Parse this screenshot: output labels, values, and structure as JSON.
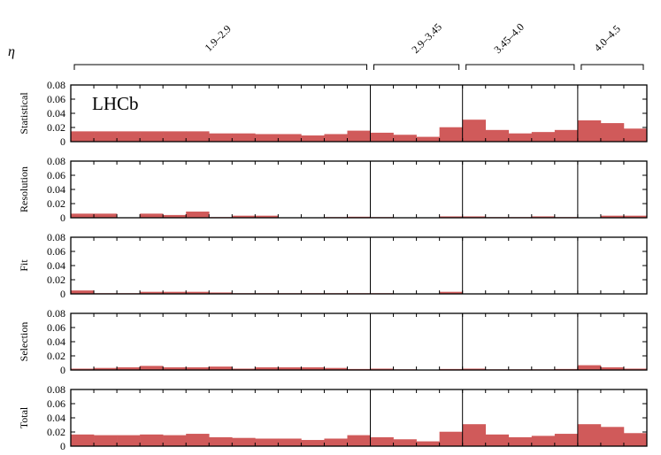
{
  "chart_data": {
    "type": "bar",
    "eta_symbol": "η",
    "eta_ranges": [
      "1.9–2.9",
      "2.9–3.45",
      "3.45–4.0",
      "4.0–4.5"
    ],
    "bins_per_range": [
      13,
      4,
      5,
      3
    ],
    "brand": "LHCb",
    "bar_color": "#d05a5a",
    "ylim": [
      0,
      0.08
    ],
    "yticks": [
      "0.08",
      "0.06",
      "0.04",
      "0.02",
      "0"
    ],
    "panels": [
      {
        "ylabel": "Statistical",
        "values": [
          0.015,
          0.015,
          0.015,
          0.015,
          0.015,
          0.015,
          0.012,
          0.012,
          0.011,
          0.011,
          0.009,
          0.011,
          0.016,
          0.013,
          0.01,
          0.007,
          0.021,
          0.032,
          0.017,
          0.012,
          0.014,
          0.017,
          0.031,
          0.027,
          0.019
        ]
      },
      {
        "ylabel": "Resolution",
        "values": [
          0.006,
          0.006,
          0.0005,
          0.006,
          0.004,
          0.009,
          0.001,
          0.003,
          0.003,
          0.0005,
          0.0005,
          0.001,
          0.0015,
          0.001,
          0.0005,
          0.0005,
          0.002,
          0.002,
          0.001,
          0.001,
          0.002,
          0.001,
          0.0005,
          0.003,
          0.003
        ]
      },
      {
        "ylabel": "Fit",
        "values": [
          0.005,
          0.001,
          0.001,
          0.003,
          0.003,
          0.003,
          0.002,
          0.001,
          0.001,
          0.001,
          0.001,
          0.001,
          0.001,
          0.001,
          0.0005,
          0.0005,
          0.003,
          0.0005,
          0.0005,
          0.0005,
          0.0005,
          0.0005,
          0.0005,
          0.0005,
          0.0005
        ]
      },
      {
        "ylabel": "Selection",
        "values": [
          0.002,
          0.003,
          0.004,
          0.006,
          0.004,
          0.004,
          0.005,
          0.002,
          0.004,
          0.004,
          0.004,
          0.003,
          0.0015,
          0.002,
          0.001,
          0.0005,
          0.0015,
          0.002,
          0.001,
          0.001,
          0.001,
          0.0015,
          0.007,
          0.004,
          0.002
        ]
      },
      {
        "ylabel": "Total",
        "values": [
          0.017,
          0.016,
          0.016,
          0.017,
          0.016,
          0.018,
          0.013,
          0.012,
          0.011,
          0.011,
          0.009,
          0.011,
          0.016,
          0.013,
          0.01,
          0.007,
          0.021,
          0.032,
          0.017,
          0.013,
          0.015,
          0.018,
          0.032,
          0.028,
          0.019
        ]
      }
    ]
  }
}
